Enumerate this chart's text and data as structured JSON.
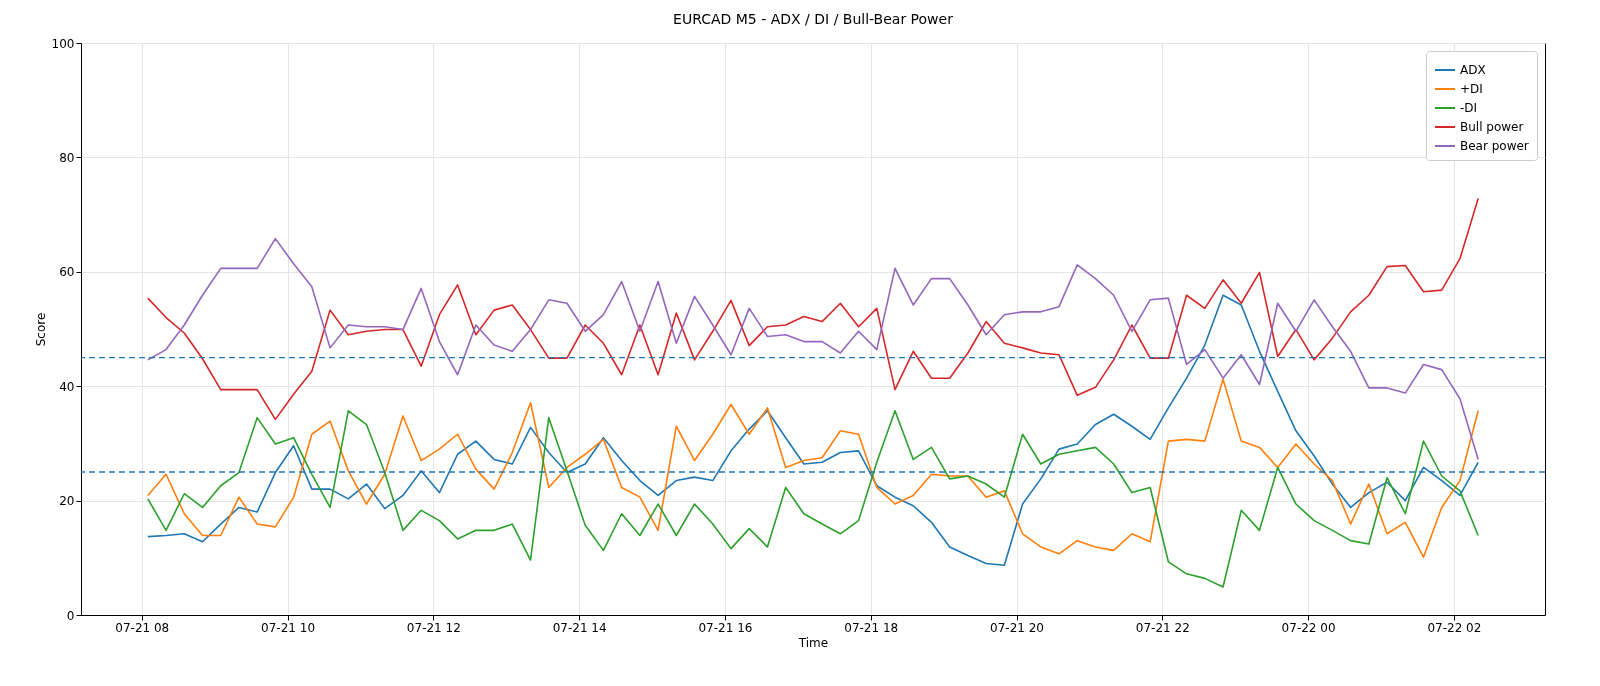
{
  "chart_data": {
    "type": "line",
    "title": "EURCAD M5 - ADX / DI / Bull-Bear Power",
    "xlabel": "Time",
    "ylabel": "Score",
    "x": [
      "--07-21T08:05",
      "--07-21T08:20",
      "--07-21T08:35",
      "--07-21T08:50",
      "--07-21T09:05",
      "--07-21T09:20",
      "--07-21T09:35",
      "--07-21T09:50",
      "--07-21T10:05",
      "--07-21T10:20",
      "--07-21T10:35",
      "--07-21T10:50",
      "--07-21T11:05",
      "--07-21T11:20",
      "--07-21T11:35",
      "--07-21T11:50",
      "--07-21T12:05",
      "--07-21T12:20",
      "--07-21T12:35",
      "--07-21T12:50",
      "--07-21T13:05",
      "--07-21T13:20",
      "--07-21T13:35",
      "--07-21T13:50",
      "--07-21T14:05",
      "--07-21T14:20",
      "--07-21T14:35",
      "--07-21T14:50",
      "--07-21T15:05",
      "--07-21T15:20",
      "--07-21T15:35",
      "--07-21T15:50",
      "--07-21T16:05",
      "--07-21T16:20",
      "--07-21T16:35",
      "--07-21T16:50",
      "--07-21T17:05",
      "--07-21T17:20",
      "--07-21T17:35",
      "--07-21T17:50",
      "--07-21T18:05",
      "--07-21T18:20",
      "--07-21T18:35",
      "--07-21T18:50",
      "--07-21T19:05",
      "--07-21T19:20",
      "--07-21T19:35",
      "--07-21T19:50",
      "--07-21T20:05",
      "--07-21T20:20",
      "--07-21T20:35",
      "--07-21T20:50",
      "--07-21T21:05",
      "--07-21T21:20",
      "--07-21T21:35",
      "--07-21T21:50",
      "--07-21T22:05",
      "--07-21T22:20",
      "--07-21T22:35",
      "--07-21T22:50",
      "--07-21T23:05",
      "--07-21T23:20",
      "--07-21T23:35",
      "--07-21T23:50",
      "--07-22T00:05",
      "--07-22T00:20",
      "--07-22T00:35",
      "--07-22T00:50",
      "--07-22T01:05",
      "--07-22T01:20",
      "--07-22T01:35",
      "--07-22T01:50",
      "--07-22T02:05",
      "--07-22T02:20"
    ],
    "series": [
      {
        "name": "ADX",
        "color": "#1f77b4",
        "values": [
          13.7,
          13.9,
          14.2,
          12.8,
          15.9,
          18.8,
          18,
          24.9,
          29.6,
          22,
          22,
          20.3,
          22.9,
          18.6,
          20.9,
          25.2,
          21.4,
          28.1,
          30.4,
          27.2,
          26.4,
          32.8,
          28.4,
          24.9,
          26.4,
          31,
          27,
          23.5,
          20.9,
          23.5,
          24.1,
          23.5,
          28.7,
          32.5,
          35.7,
          31,
          26.4,
          26.7,
          28.4,
          28.7,
          22.6,
          20.6,
          19.1,
          16.2,
          11.9,
          10.4,
          9,
          8.7,
          19.4,
          23.8,
          29,
          29.9,
          33.3,
          35.1,
          33,
          30.7,
          36.2,
          41.4,
          47.2,
          55.9,
          54.2,
          46.1,
          39.1,
          32.2,
          27.8,
          22.9,
          18.8,
          21.4,
          23.2,
          20,
          25.8,
          23.5,
          20.9,
          26.7
        ]
      },
      {
        "name": "+DI",
        "color": "#ff7f0e",
        "values": [
          20.9,
          24.6,
          17.7,
          13.9,
          13.9,
          20.6,
          15.9,
          15.4,
          20.6,
          31.6,
          33.9,
          25.2,
          19.4,
          24.6,
          34.8,
          27,
          29,
          31.6,
          25.5,
          22,
          28.4,
          37.1,
          22.3,
          25.8,
          28.1,
          30.7,
          22.3,
          20.6,
          14.8,
          33,
          27,
          31.6,
          36.8,
          31.6,
          36.2,
          25.8,
          27,
          27.5,
          32.2,
          31.6,
          22.3,
          19.4,
          20.9,
          24.6,
          24.3,
          24.3,
          20.6,
          21.7,
          14.2,
          11.9,
          10.7,
          13,
          11.9,
          11.3,
          14.2,
          12.8,
          30.4,
          30.7,
          30.4,
          41.2,
          30.4,
          29.3,
          25.8,
          29.9,
          26.4,
          23.5,
          15.9,
          22.9,
          14.2,
          16.2,
          10.1,
          18.8,
          23.5,
          35.7
        ]
      },
      {
        "name": "-DI",
        "color": "#2ca02c",
        "values": [
          20.3,
          14.8,
          21.2,
          18.8,
          22.6,
          24.9,
          34.5,
          29.9,
          31,
          24.6,
          18.8,
          35.7,
          33.3,
          24.9,
          14.8,
          18.3,
          16.5,
          13.3,
          14.8,
          14.8,
          15.9,
          9.6,
          34.5,
          25.2,
          15.7,
          11.3,
          17.7,
          13.9,
          19.4,
          13.9,
          19.4,
          15.9,
          11.6,
          15.1,
          11.9,
          22.3,
          17.7,
          15.9,
          14.2,
          16.5,
          26.7,
          35.7,
          27.2,
          29.3,
          23.8,
          24.3,
          22.9,
          20.6,
          31.6,
          26.4,
          28.1,
          28.7,
          29.3,
          26.4,
          21.4,
          22.3,
          9.3,
          7.2,
          6.4,
          4.9,
          18.3,
          14.8,
          25.8,
          19.4,
          16.5,
          14.8,
          13,
          12.4,
          24,
          17.7,
          30.4,
          24.3,
          21.7,
          13.9
        ]
      },
      {
        "name": "Bull power",
        "color": "#d62728",
        "values": [
          55.4,
          52,
          49.3,
          44.8,
          39.4,
          39.4,
          39.4,
          34.2,
          38.6,
          42.6,
          53.3,
          49,
          49.6,
          49.9,
          49.9,
          43.5,
          52.5,
          57.7,
          49,
          53.3,
          54.2,
          49.9,
          44.9,
          44.9,
          50.7,
          47.5,
          42,
          50.7,
          42,
          52.8,
          44.6,
          49.6,
          55,
          47.1,
          50.4,
          50.7,
          52.2,
          51.3,
          54.5,
          50.4,
          53.6,
          39.4,
          46.1,
          41.4,
          41.4,
          45.8,
          51.3,
          47.5,
          46.7,
          45.8,
          45.5,
          38.4,
          39.8,
          44.6,
          50.7,
          44.9,
          44.9,
          55.9,
          53.6,
          58.6,
          54.5,
          59.9,
          45.2,
          49.9,
          44.6,
          48.4,
          53,
          55.9,
          60.9,
          61.1,
          56.5,
          56.8,
          62.3,
          72.8
        ]
      },
      {
        "name": "Bear power",
        "color": "#9467bd",
        "values": [
          44.6,
          46.4,
          50.7,
          55.9,
          60.6,
          60.6,
          60.6,
          65.8,
          61.4,
          57.4,
          46.7,
          50.7,
          50.4,
          50.4,
          49.9,
          57.1,
          47.8,
          42,
          50.7,
          47.2,
          46.1,
          49.9,
          55.1,
          54.5,
          49.6,
          52.5,
          58.3,
          49.6,
          58.3,
          47.5,
          55.7,
          50.7,
          45.5,
          53.6,
          48.7,
          49,
          47.8,
          47.8,
          45.8,
          49.6,
          46.4,
          60.6,
          54.2,
          58.8,
          58.8,
          54.2,
          49,
          52.5,
          53,
          53,
          53.9,
          61.2,
          58.8,
          55.9,
          49.6,
          55.1,
          55.4,
          43.8,
          46.4,
          41.4,
          45.5,
          40.3,
          54.5,
          49.6,
          55.1,
          50.4,
          46.1,
          39.7,
          39.7,
          38.8,
          43.8,
          42.9,
          37.8,
          27.2
        ]
      }
    ],
    "xlim": [
      "--07-21T07:10",
      "--07-22T03:15"
    ],
    "xticks": [
      {
        "value": "--07-21T08:00",
        "label": "07-21 08"
      },
      {
        "value": "--07-21T10:00",
        "label": "07-21 10"
      },
      {
        "value": "--07-21T12:00",
        "label": "07-21 12"
      },
      {
        "value": "--07-21T14:00",
        "label": "07-21 14"
      },
      {
        "value": "--07-21T16:00",
        "label": "07-21 16"
      },
      {
        "value": "--07-21T18:00",
        "label": "07-21 18"
      },
      {
        "value": "--07-21T20:00",
        "label": "07-21 20"
      },
      {
        "value": "--07-21T22:00",
        "label": "07-21 22"
      },
      {
        "value": "--07-22T00:00",
        "label": "07-22 00"
      },
      {
        "value": "--07-22T02:00",
        "label": "07-22 02"
      }
    ],
    "ylim": [
      0,
      100
    ],
    "yticks": [
      0,
      20,
      40,
      60,
      80,
      100
    ],
    "ref_lines": [
      {
        "axis": "y",
        "value": 45,
        "color": "#1f77b4",
        "line_style": "dashed"
      },
      {
        "axis": "y",
        "value": 25,
        "color": "#1f77b4",
        "line_style": "dashed"
      }
    ],
    "grid": true,
    "legend": "top right",
    "line_style": "solid"
  }
}
